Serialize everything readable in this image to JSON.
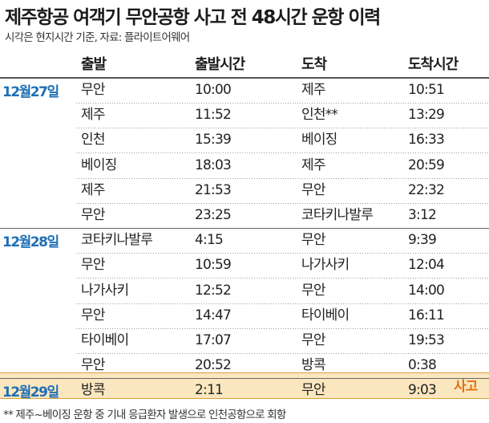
{
  "title": "제주항공 여객기 무안공항 사고 전 48시간 운항 이력",
  "subtitle": "시각은 현지시간 기준, 자료: 플라이트어웨어",
  "columns": [
    "출발",
    "출발시간",
    "도착",
    "도착시간"
  ],
  "groups": [
    {
      "date": "12월27일",
      "rows": [
        [
          "무안",
          "10:00",
          "제주",
          "10:51"
        ],
        [
          "제주",
          "11:52",
          "인천**",
          "13:29"
        ],
        [
          "인천",
          "15:39",
          "베이징",
          "16:33"
        ],
        [
          "베이징",
          "18:03",
          "제주",
          "20:59"
        ],
        [
          "제주",
          "21:53",
          "무안",
          "22:32"
        ],
        [
          "무안",
          "23:25",
          "코타키나발루",
          "3:12"
        ]
      ]
    },
    {
      "date": "12월28일",
      "rows": [
        [
          "코타키나발루",
          "4:15",
          "무안",
          "9:39"
        ],
        [
          "무안",
          "10:59",
          "나가사키",
          "12:04"
        ],
        [
          "나가사키",
          "12:52",
          "무안",
          "14:00"
        ],
        [
          "무안",
          "14:47",
          "타이베이",
          "16:11"
        ],
        [
          "타이베이",
          "17:07",
          "무안",
          "19:53"
        ],
        [
          "무안",
          "20:52",
          "방콕",
          "0:38"
        ]
      ]
    },
    {
      "date": "12월29일",
      "rows": [
        [
          "방콕",
          "2:11",
          "무안",
          "9:03"
        ]
      ]
    }
  ],
  "accident_label": "사고",
  "footnote": "** 제주~베이징 운항 중 기내 응급환자 발생으로 인천공항으로 회항",
  "colors": {
    "date_blue": "#1e6fb5",
    "highlight_bg": "#fbe7bf",
    "accident_orange": "#e0720f"
  }
}
